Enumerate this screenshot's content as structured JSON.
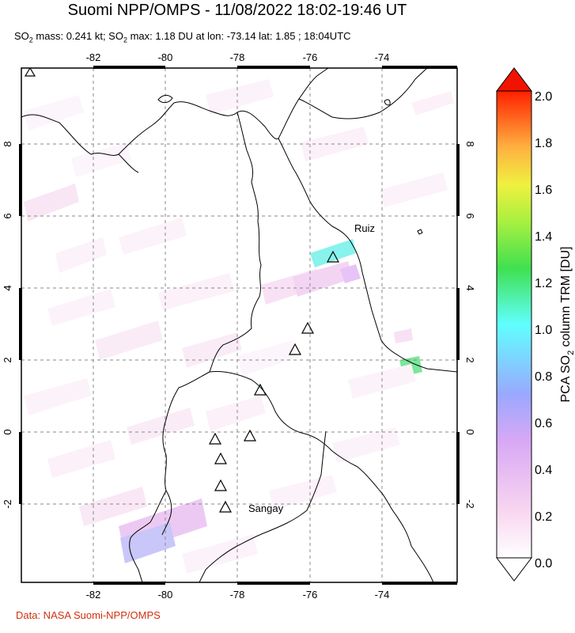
{
  "header": {
    "title": "Suomi NPP/OMPS - 11/08/2022 18:02-19:46 UT",
    "subtitle_pre": "SO",
    "subtitle_sub": "2",
    "subtitle_mid": " mass: 0.241 kt; SO",
    "subtitle_sub2": "2",
    "subtitle_post": " max: 1.18 DU at lon: -73.14 lat: 1.85 ; 18:04UTC"
  },
  "map": {
    "lon_ticks": [
      "-82",
      "-80",
      "-78",
      "-76",
      "-74"
    ],
    "lat_ticks": [
      "8",
      "6",
      "4",
      "2",
      "0",
      "-2"
    ],
    "volcano_labels": {
      "ruiz": "Ruiz",
      "sangay": "Sangay"
    }
  },
  "colorbar": {
    "ticks": [
      "2.0",
      "1.8",
      "1.6",
      "1.4",
      "1.2",
      "1.0",
      "0.8",
      "0.6",
      "0.4",
      "0.2",
      "0.0"
    ],
    "label_pre": "PCA SO",
    "label_sub": "2",
    "label_post": " column TRM [DU]",
    "colors": [
      "#ffffff",
      "#f5c8f0",
      "#b57ff0",
      "#7fb0ff",
      "#5fffff",
      "#3ce63c",
      "#b4ff3c",
      "#ffff3c",
      "#ffb43c",
      "#ff3c14",
      "#e61400"
    ]
  },
  "footer": {
    "credit": "Data: NASA Suomi-NPP/OMPS"
  }
}
